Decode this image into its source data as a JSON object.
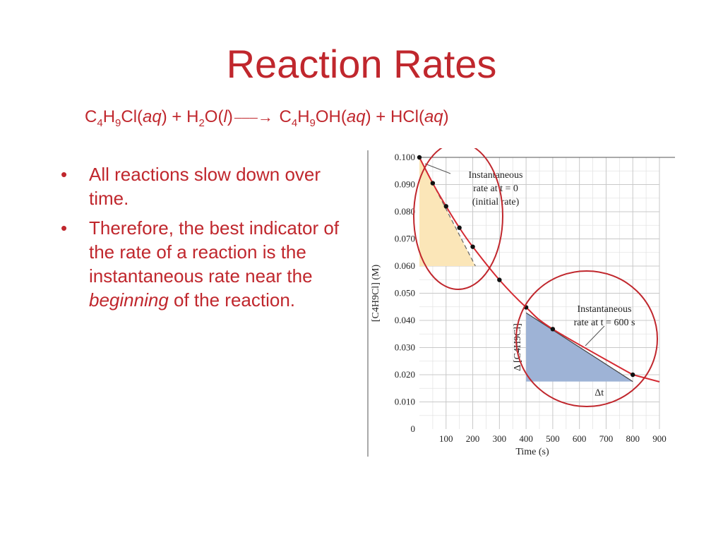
{
  "slide": {
    "title": "Reaction Rates",
    "equation": {
      "r1": "C",
      "r1_s1": "4",
      "r1_h": "H",
      "r1_s2": "9",
      "r1_tail": "Cl",
      "r1_phase": "aq",
      "plus1": "+",
      "r2": "H",
      "r2_s": "2",
      "r2_tail": "O",
      "r2_phase": "l",
      "arrow": "⎯⎯⎯→",
      "p1": "C",
      "p1_s1": "4",
      "p1_h": "H",
      "p1_s2": "9",
      "p1_tail": "OH",
      "p1_phase": "aq",
      "plus2": "+",
      "p2": "HCl",
      "p2_phase": "aq"
    },
    "bullets": {
      "b1": "All reactions slow down over time.",
      "b2_pre": "Therefore, the best indicator of the rate of a reaction is the instantaneous rate near the ",
      "b2_em": "beginning",
      "b2_post": " of the reaction."
    },
    "colors": {
      "text": "#c0272d",
      "curve": "#d42a32",
      "circle": "#c0272d",
      "initial_triangle": "#fbe6b8",
      "later_triangle": "#9eb3d6"
    }
  },
  "chart_data": {
    "type": "line",
    "xlabel": "Time (s)",
    "ylabel": "[C4H9Cl] (M)",
    "xlim": [
      0,
      900
    ],
    "ylim": [
      0,
      0.1
    ],
    "x_ticks": [
      "100",
      "200",
      "300",
      "400",
      "500",
      "600",
      "700",
      "800",
      "900"
    ],
    "y_ticks": [
      "0",
      "0.010",
      "0.020",
      "0.030",
      "0.040",
      "0.050",
      "0.060",
      "0.070",
      "0.080",
      "0.090",
      "0.100"
    ],
    "grid": true,
    "series": [
      {
        "x": [
          0,
          50,
          100,
          150,
          200,
          300,
          400,
          500,
          800
        ],
        "y": [
          0.1,
          0.0905,
          0.082,
          0.0741,
          0.0671,
          0.0549,
          0.0448,
          0.0368,
          0.02
        ]
      }
    ],
    "tangent_initial": {
      "x": [
        0,
        210
      ],
      "y": [
        0.1,
        0.06
      ]
    },
    "tangent_600": {
      "x": [
        400,
        800
      ],
      "y": [
        0.0428,
        0.0175
      ]
    },
    "annotations": {
      "initial_l1": "Instantaneous",
      "initial_l2": "rate at t = 0",
      "initial_l3": "(initial rate)",
      "later_l1": "Instantaneous",
      "later_l2": "rate at t = 600 s",
      "delta_t": "Δt",
      "delta_conc": "Δ [C4H9Cl]"
    }
  }
}
